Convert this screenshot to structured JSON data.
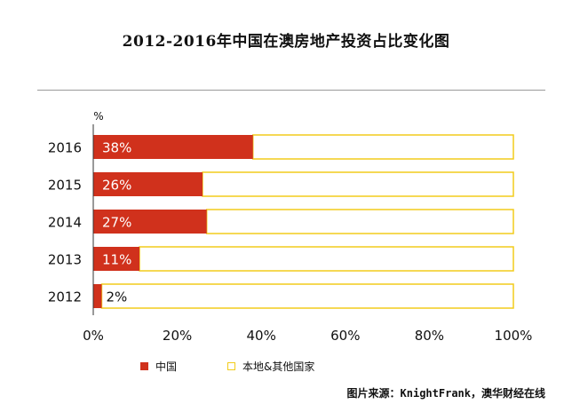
{
  "chart_data": {
    "type": "bar",
    "orientation": "horizontal",
    "stacked": true,
    "title": "2012-2016年中国在澳房地产投资占比变化图",
    "unit_label": "%",
    "categories": [
      "2016",
      "2015",
      "2014",
      "2013",
      "2012"
    ],
    "series": [
      {
        "name": "中国",
        "values": [
          38,
          26,
          27,
          11,
          2
        ],
        "color": "#d0311c"
      },
      {
        "name": "本地&其他国家",
        "values": [
          62,
          74,
          73,
          89,
          98
        ],
        "color": "#ffffff",
        "border": "#f2cc1b"
      }
    ],
    "data_labels": [
      "38%",
      "26%",
      "27%",
      "11%",
      "2%"
    ],
    "xlim": [
      0,
      100
    ],
    "xticks": [
      0,
      20,
      40,
      60,
      80,
      100
    ],
    "xtick_labels": [
      "0%",
      "20%",
      "40%",
      "60%",
      "80%",
      "100%"
    ],
    "grid": false,
    "legend_position": "bottom-left"
  },
  "source": "图片来源：KnightFrank，澳华财经在线"
}
